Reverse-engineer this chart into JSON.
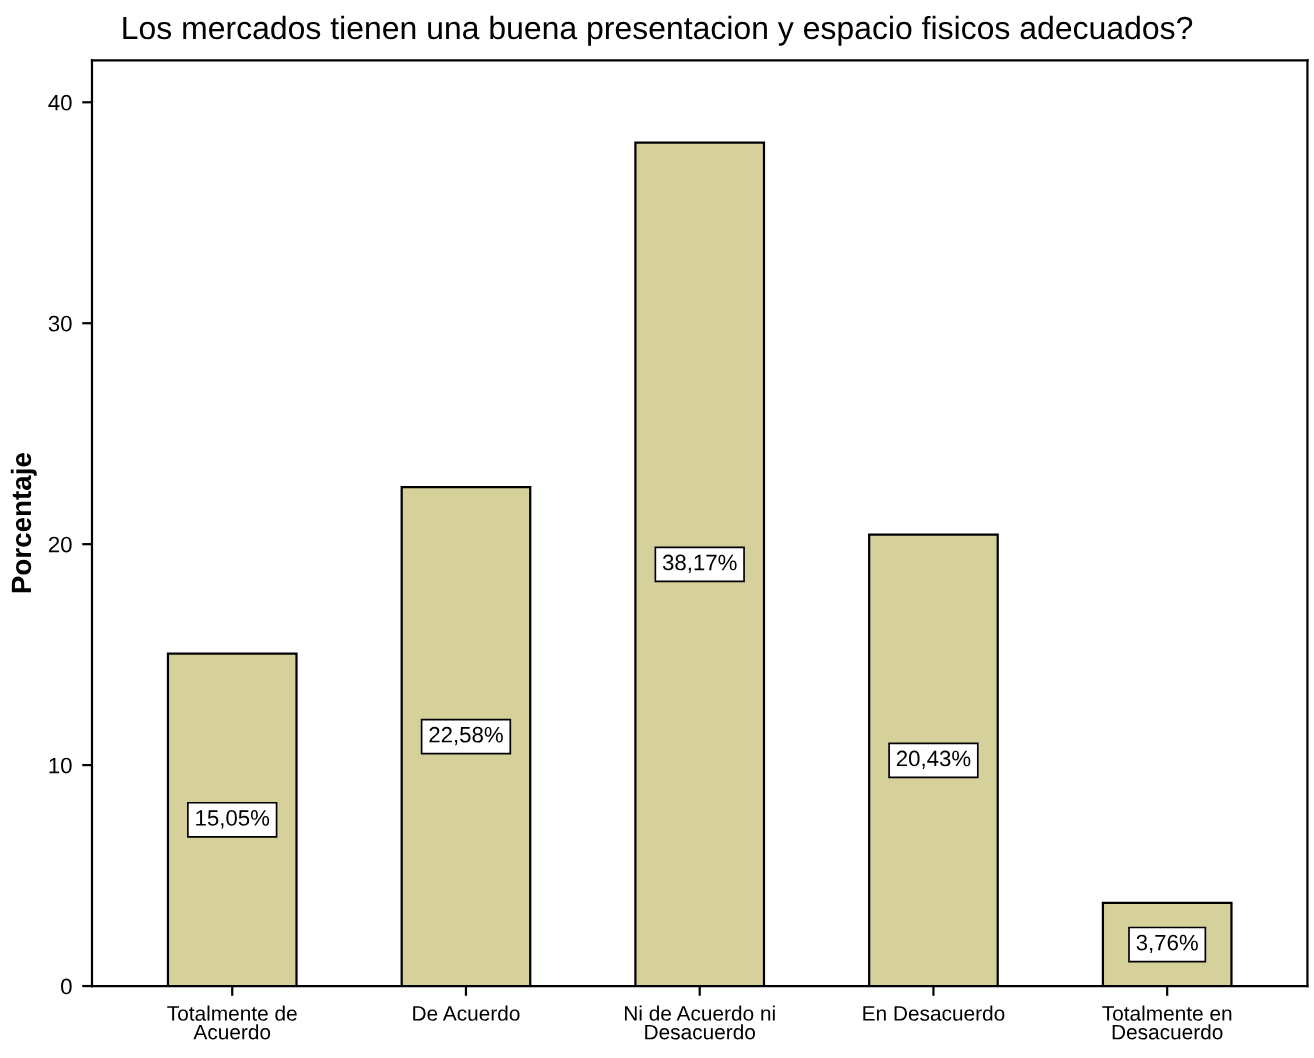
{
  "chart_data": {
    "type": "bar",
    "title": "Los mercados tienen una buena presentacion y espacio fisicos adecuados?",
    "ylabel": "Porcentaje",
    "categories": [
      "Totalmente de\nAcuerdo",
      "De Acuerdo",
      "Ni de Acuerdo ni\nDesacuerdo",
      "En Desacuerdo",
      "Totalmente en\nDesacuerdo"
    ],
    "values": [
      15.05,
      22.58,
      38.17,
      20.43,
      3.76
    ],
    "value_labels": [
      "15,05%",
      "22,58%",
      "38,17%",
      "20,43%",
      "3,76%"
    ],
    "color": "#d6d19b",
    "ylim": [
      0,
      41.9
    ],
    "yticks": [
      0,
      10,
      20,
      30,
      40
    ],
    "grid": false
  }
}
